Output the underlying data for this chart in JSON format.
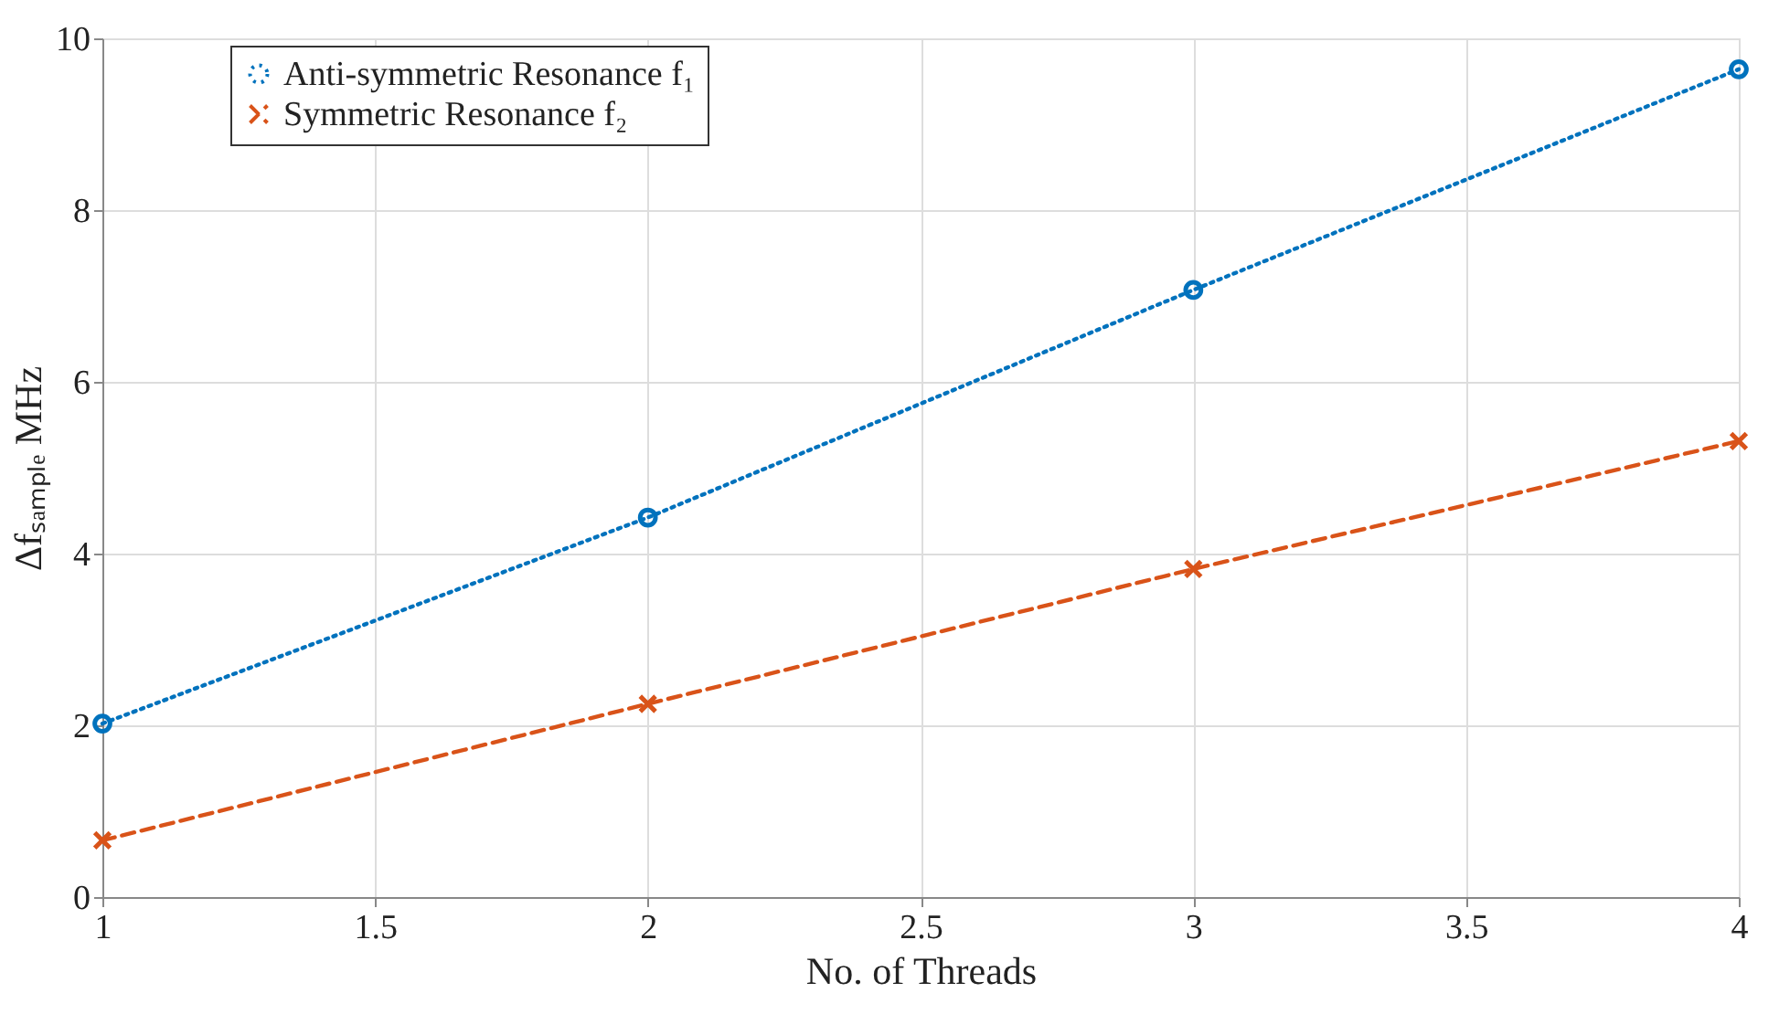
{
  "chart_data": {
    "type": "line",
    "xlabel": "No. of Threads",
    "ylabel": "Δfₛₐₘₚₗₑ MHz",
    "x": [
      1,
      2,
      3,
      4
    ],
    "series": [
      {
        "name": "Anti-symmetric Resonance f₁",
        "color": "#0072bd",
        "values": [
          2.02,
          4.42,
          7.07,
          9.64
        ],
        "marker": "circle",
        "line_style": "dotted"
      },
      {
        "name": "Symmetric Resonance f₂",
        "color": "#d95319",
        "values": [
          0.66,
          2.25,
          3.82,
          5.31
        ],
        "marker": "cross",
        "line_style": "dashed"
      }
    ],
    "xlim": [
      1,
      4
    ],
    "xticks": [
      1,
      1.5,
      2,
      2.5,
      3,
      3.5,
      4
    ],
    "ylim": [
      0,
      10
    ],
    "yticks": [
      0,
      2,
      4,
      6,
      8,
      10
    ],
    "grid": true,
    "legend": "top left"
  }
}
